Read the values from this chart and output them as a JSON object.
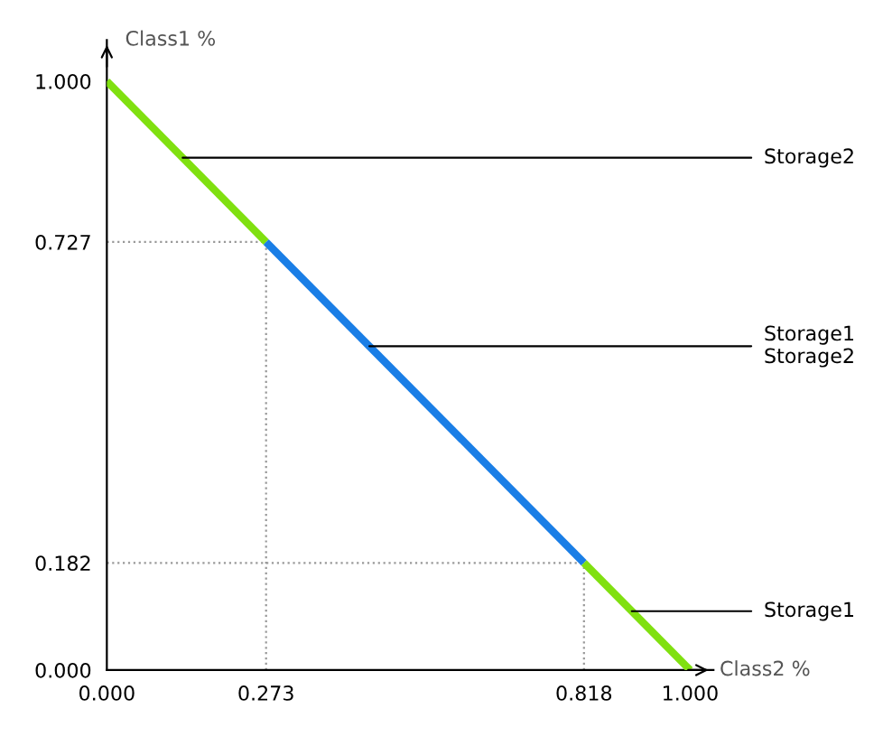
{
  "chart_data": {
    "type": "line",
    "xlabel": "Class2 %",
    "ylabel": "Class1 %",
    "series": [
      {
        "color": "#80e010",
        "x": [
          0,
          0.273
        ],
        "values": [
          1.0,
          0.727
        ]
      },
      {
        "color": "#1a7ee6",
        "x": [
          0.273,
          0.818
        ],
        "values": [
          0.727,
          0.182
        ]
      },
      {
        "color": "#80e010",
        "x": [
          0.818,
          1.0
        ],
        "values": [
          0.182,
          0.0
        ]
      }
    ],
    "xlim": [
      0,
      1.04
    ],
    "ylim": [
      0,
      1.07
    ],
    "xticks": [
      {
        "value": 0,
        "label": "0.000"
      },
      {
        "value": 0.273,
        "label": "0.273"
      },
      {
        "value": 0.818,
        "label": "0.818"
      },
      {
        "value": 1.0,
        "label": "1.000"
      }
    ],
    "yticks": [
      {
        "value": 0,
        "label": "0.000"
      },
      {
        "value": 0.182,
        "label": "0.182"
      },
      {
        "value": 0.727,
        "label": "0.727"
      },
      {
        "value": 1.0,
        "label": "1.000"
      }
    ],
    "ref_lines": [
      {
        "axis": "x",
        "value": 0.273,
        "color": "#999999",
        "line_style": "dotted"
      },
      {
        "axis": "x",
        "value": 0.818,
        "color": "#999999",
        "line_style": "dotted"
      },
      {
        "axis": "y",
        "value": 0.727,
        "color": "#999999",
        "line_style": "dotted"
      },
      {
        "axis": "y",
        "value": 0.182,
        "color": "#999999",
        "line_style": "dotted"
      }
    ],
    "annotations": [
      {
        "text": "Storage2",
        "x": 0.13,
        "y": 0.87
      },
      {
        "text": "Storage1\nStorage2",
        "x": 0.45,
        "y": 0.55
      },
      {
        "text": "Storage1",
        "x": 0.9,
        "y": 0.1
      }
    ],
    "grid": false,
    "marker": "none",
    "line_style": "solid"
  }
}
